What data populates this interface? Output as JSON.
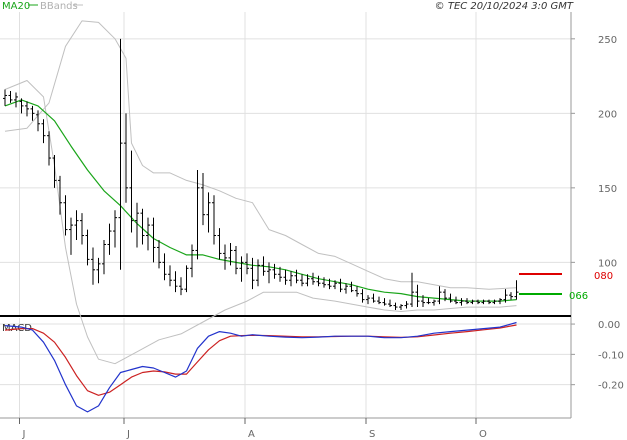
{
  "header": {
    "legend_ma": "MA20",
    "legend_bb": "BBands",
    "copyright": "© TEC 20/10/2024 3:0 GMT"
  },
  "colors": {
    "price": "#000000",
    "ma": "#1aa51a",
    "bb": "#c0c0c0",
    "grid": "#e0e0e0",
    "resistance": "#dd0000",
    "support": "#00aa00",
    "macd_blue": "#2233cc",
    "macd_red": "#cc2222"
  },
  "chart_data": [
    {
      "type": "ohlc",
      "ylim": [
        64,
        268
      ],
      "y_ticks": [
        100,
        150,
        200,
        250
      ],
      "y_tick_labels": [
        "100",
        "150",
        "200",
        "250"
      ],
      "x_ticks": [
        {
          "label": "J",
          "index": 3
        },
        {
          "label": "J",
          "index": 22
        },
        {
          "label": "A",
          "index": 44
        },
        {
          "label": "S",
          "index": 66
        },
        {
          "label": "O",
          "index": 86
        }
      ],
      "n_slots": 110,
      "bars": [
        [
          210,
          216,
          205,
          212
        ],
        [
          212,
          215,
          207,
          209
        ],
        [
          209,
          214,
          204,
          211
        ],
        [
          208,
          210,
          200,
          205
        ],
        [
          205,
          208,
          198,
          203
        ],
        [
          203,
          205,
          195,
          200
        ],
        [
          199,
          202,
          188,
          193
        ],
        [
          193,
          196,
          180,
          185
        ],
        [
          185,
          188,
          165,
          170
        ],
        [
          170,
          172,
          150,
          155
        ],
        [
          155,
          158,
          132,
          140
        ],
        [
          140,
          145,
          118,
          122
        ],
        [
          122,
          130,
          105,
          125
        ],
        [
          125,
          135,
          115,
          128
        ],
        [
          128,
          133,
          112,
          118
        ],
        [
          118,
          122,
          98,
          102
        ],
        [
          102,
          110,
          85,
          95
        ],
        [
          95,
          103,
          86,
          99
        ],
        [
          99,
          115,
          92,
          112
        ],
        [
          112,
          126,
          105,
          121
        ],
        [
          121,
          135,
          110,
          130
        ],
        [
          130,
          250,
          95,
          180
        ],
        [
          180,
          200,
          140,
          150
        ],
        [
          150,
          175,
          120,
          128
        ],
        [
          128,
          140,
          110,
          133
        ],
        [
          133,
          136,
          112,
          118
        ],
        [
          118,
          130,
          108,
          125
        ],
        [
          125,
          130,
          100,
          110
        ],
        [
          110,
          115,
          96,
          100
        ],
        [
          100,
          106,
          88,
          92
        ],
        [
          92,
          98,
          84,
          88
        ],
        [
          88,
          94,
          80,
          84
        ],
        [
          84,
          90,
          78,
          82
        ],
        [
          82,
          98,
          80,
          96
        ],
        [
          96,
          112,
          90,
          108
        ],
        [
          108,
          162,
          102,
          150
        ],
        [
          150,
          160,
          125,
          132
        ],
        [
          132,
          147,
          120,
          140
        ],
        [
          140,
          145,
          112,
          118
        ],
        [
          118,
          123,
          102,
          106
        ],
        [
          106,
          112,
          95,
          103
        ],
        [
          103,
          113,
          98,
          108
        ],
        [
          108,
          111,
          92,
          96
        ],
        [
          96,
          104,
          87,
          100
        ],
        [
          100,
          106,
          92,
          96
        ],
        [
          96,
          103,
          82,
          88
        ],
        [
          88,
          102,
          84,
          98
        ],
        [
          98,
          104,
          91,
          94
        ],
        [
          94,
          100,
          86,
          95
        ],
        [
          95,
          99,
          89,
          92
        ],
        [
          92,
          97,
          87,
          90
        ],
        [
          90,
          95,
          85,
          88
        ],
        [
          88,
          94,
          84,
          91
        ],
        [
          91,
          95,
          86,
          88
        ],
        [
          88,
          92,
          84,
          86
        ],
        [
          86,
          92,
          84,
          89
        ],
        [
          89,
          93,
          85,
          87
        ],
        [
          87,
          91,
          84,
          86
        ],
        [
          86,
          90,
          83,
          85
        ],
        [
          85,
          89,
          82,
          84
        ],
        [
          84,
          88,
          82,
          86
        ],
        [
          86,
          89,
          80,
          82
        ],
        [
          82,
          86,
          79,
          84
        ],
        [
          84,
          87,
          80,
          81
        ],
        [
          81,
          84,
          77,
          79
        ],
        [
          79,
          82,
          73,
          75
        ],
        [
          75,
          78,
          72,
          76
        ],
        [
          76,
          79,
          73,
          74
        ],
        [
          74,
          77,
          72,
          73
        ],
        [
          73,
          76,
          71,
          72
        ],
        [
          72,
          75,
          70,
          71
        ],
        [
          71,
          73,
          68,
          70
        ],
        [
          70,
          72,
          68,
          71
        ],
        [
          71,
          74,
          69,
          72
        ],
        [
          72,
          93,
          70,
          80
        ],
        [
          80,
          85,
          70,
          74
        ],
        [
          74,
          78,
          70,
          73
        ],
        [
          73,
          76,
          72,
          73
        ],
        [
          73,
          75,
          71,
          74
        ],
        [
          74,
          84,
          72,
          80
        ],
        [
          80,
          82,
          74,
          76
        ],
        [
          76,
          79,
          73,
          74
        ],
        [
          74,
          77,
          72,
          73
        ],
        [
          73,
          76,
          71,
          74
        ],
        [
          74,
          76,
          72,
          73
        ],
        [
          73,
          75,
          72,
          74
        ],
        [
          74,
          75,
          72,
          73
        ],
        [
          73,
          75,
          72,
          74
        ],
        [
          74,
          75,
          72,
          73
        ],
        [
          73,
          75,
          72,
          74
        ],
        [
          74,
          76,
          72,
          75
        ],
        [
          75,
          82,
          73,
          78
        ],
        [
          78,
          80,
          75,
          77
        ],
        [
          77,
          88,
          75,
          80
        ]
      ],
      "ma20": [
        [
          0,
          205
        ],
        [
          3,
          209
        ],
        [
          6,
          205
        ],
        [
          9,
          195
        ],
        [
          12,
          178
        ],
        [
          15,
          162
        ],
        [
          18,
          148
        ],
        [
          21,
          138
        ],
        [
          24,
          126
        ],
        [
          27,
          116
        ],
        [
          30,
          110
        ],
        [
          33,
          105
        ],
        [
          36,
          105
        ],
        [
          39,
          102
        ],
        [
          42,
          100
        ],
        [
          45,
          98
        ],
        [
          48,
          97
        ],
        [
          51,
          95
        ],
        [
          54,
          92
        ],
        [
          57,
          89
        ],
        [
          60,
          87
        ],
        [
          63,
          85
        ],
        [
          66,
          82
        ],
        [
          69,
          80
        ],
        [
          72,
          79
        ],
        [
          75,
          77
        ],
        [
          78,
          76
        ],
        [
          81,
          75
        ],
        [
          84,
          74
        ],
        [
          87,
          74
        ],
        [
          90,
          74
        ],
        [
          93,
          75
        ]
      ],
      "bb_upper": [
        [
          0,
          188
        ],
        [
          4,
          190
        ],
        [
          8,
          207
        ],
        [
          11,
          245
        ],
        [
          14,
          262
        ],
        [
          17,
          261
        ],
        [
          20,
          250
        ],
        [
          22,
          237
        ],
        [
          23,
          180
        ],
        [
          25,
          165
        ],
        [
          27,
          160
        ],
        [
          30,
          160
        ],
        [
          33,
          155
        ],
        [
          36,
          152
        ],
        [
          39,
          148
        ],
        [
          42,
          143
        ],
        [
          45,
          140
        ],
        [
          48,
          122
        ],
        [
          51,
          118
        ],
        [
          54,
          112
        ],
        [
          57,
          106
        ],
        [
          60,
          104
        ],
        [
          63,
          99
        ],
        [
          66,
          94
        ],
        [
          69,
          89
        ],
        [
          72,
          87
        ],
        [
          75,
          87
        ],
        [
          78,
          85
        ],
        [
          81,
          83
        ],
        [
          84,
          83
        ],
        [
          88,
          82
        ],
        [
          93,
          83
        ]
      ],
      "bb_lower": [
        [
          0,
          216
        ],
        [
          4,
          222
        ],
        [
          7,
          211
        ],
        [
          9,
          165
        ],
        [
          11,
          110
        ],
        [
          13,
          72
        ],
        [
          15,
          50
        ],
        [
          17,
          35
        ],
        [
          20,
          32
        ],
        [
          24,
          40
        ],
        [
          28,
          48
        ],
        [
          32,
          52
        ],
        [
          36,
          60
        ],
        [
          40,
          68
        ],
        [
          44,
          74
        ],
        [
          47,
          80
        ],
        [
          50,
          80
        ],
        [
          53,
          80
        ],
        [
          56,
          76
        ],
        [
          60,
          74
        ],
        [
          63,
          72
        ],
        [
          66,
          70
        ],
        [
          69,
          68
        ],
        [
          72,
          67
        ],
        [
          75,
          68
        ],
        [
          78,
          68
        ],
        [
          81,
          69
        ],
        [
          84,
          70
        ],
        [
          87,
          70
        ],
        [
          90,
          70
        ],
        [
          93,
          71
        ]
      ],
      "resistance": {
        "label": "080",
        "value": 80
      },
      "support": {
        "label": "066",
        "value": 66
      }
    },
    {
      "type": "line",
      "title": "MACD",
      "ylim": [
        -0.31,
        0.02
      ],
      "y_ticks": [
        0,
        -0.1,
        -0.2
      ],
      "y_tick_labels": [
        "0.00",
        "-0.10",
        "-0.20"
      ],
      "series": [
        {
          "name": "macd",
          "points": [
            [
              0,
              -0.005
            ],
            [
              3,
              -0.01
            ],
            [
              5,
              -0.02
            ],
            [
              7,
              -0.06
            ],
            [
              9,
              -0.12
            ],
            [
              11,
              -0.2
            ],
            [
              13,
              -0.27
            ],
            [
              15,
              -0.29
            ],
            [
              17,
              -0.27
            ],
            [
              19,
              -0.21
            ],
            [
              21,
              -0.16
            ],
            [
              23,
              -0.15
            ],
            [
              25,
              -0.14
            ],
            [
              27,
              -0.145
            ],
            [
              29,
              -0.16
            ],
            [
              31,
              -0.175
            ],
            [
              33,
              -0.155
            ],
            [
              35,
              -0.08
            ],
            [
              37,
              -0.04
            ],
            [
              39,
              -0.025
            ],
            [
              41,
              -0.03
            ],
            [
              43,
              -0.04
            ],
            [
              45,
              -0.035
            ],
            [
              48,
              -0.04
            ],
            [
              51,
              -0.043
            ],
            [
              54,
              -0.045
            ],
            [
              57,
              -0.043
            ],
            [
              60,
              -0.04
            ],
            [
              63,
              -0.04
            ],
            [
              66,
              -0.04
            ],
            [
              69,
              -0.045
            ],
            [
              72,
              -0.045
            ],
            [
              75,
              -0.04
            ],
            [
              78,
              -0.03
            ],
            [
              81,
              -0.025
            ],
            [
              84,
              -0.02
            ],
            [
              87,
              -0.015
            ],
            [
              90,
              -0.01
            ],
            [
              93,
              0.005
            ]
          ]
        },
        {
          "name": "signal",
          "points": [
            [
              0,
              -0.02
            ],
            [
              3,
              -0.015
            ],
            [
              5,
              -0.015
            ],
            [
              7,
              -0.03
            ],
            [
              9,
              -0.06
            ],
            [
              11,
              -0.11
            ],
            [
              13,
              -0.17
            ],
            [
              15,
              -0.22
            ],
            [
              17,
              -0.235
            ],
            [
              19,
              -0.225
            ],
            [
              21,
              -0.2
            ],
            [
              23,
              -0.175
            ],
            [
              25,
              -0.16
            ],
            [
              27,
              -0.155
            ],
            [
              29,
              -0.158
            ],
            [
              31,
              -0.165
            ],
            [
              33,
              -0.165
            ],
            [
              35,
              -0.125
            ],
            [
              37,
              -0.085
            ],
            [
              39,
              -0.055
            ],
            [
              41,
              -0.04
            ],
            [
              43,
              -0.038
            ],
            [
              45,
              -0.037
            ],
            [
              48,
              -0.038
            ],
            [
              51,
              -0.04
            ],
            [
              54,
              -0.042
            ],
            [
              57,
              -0.042
            ],
            [
              60,
              -0.041
            ],
            [
              63,
              -0.04
            ],
            [
              66,
              -0.04
            ],
            [
              69,
              -0.042
            ],
            [
              72,
              -0.044
            ],
            [
              75,
              -0.042
            ],
            [
              78,
              -0.036
            ],
            [
              81,
              -0.03
            ],
            [
              84,
              -0.025
            ],
            [
              87,
              -0.019
            ],
            [
              90,
              -0.013
            ],
            [
              93,
              -0.003
            ]
          ]
        }
      ]
    }
  ]
}
